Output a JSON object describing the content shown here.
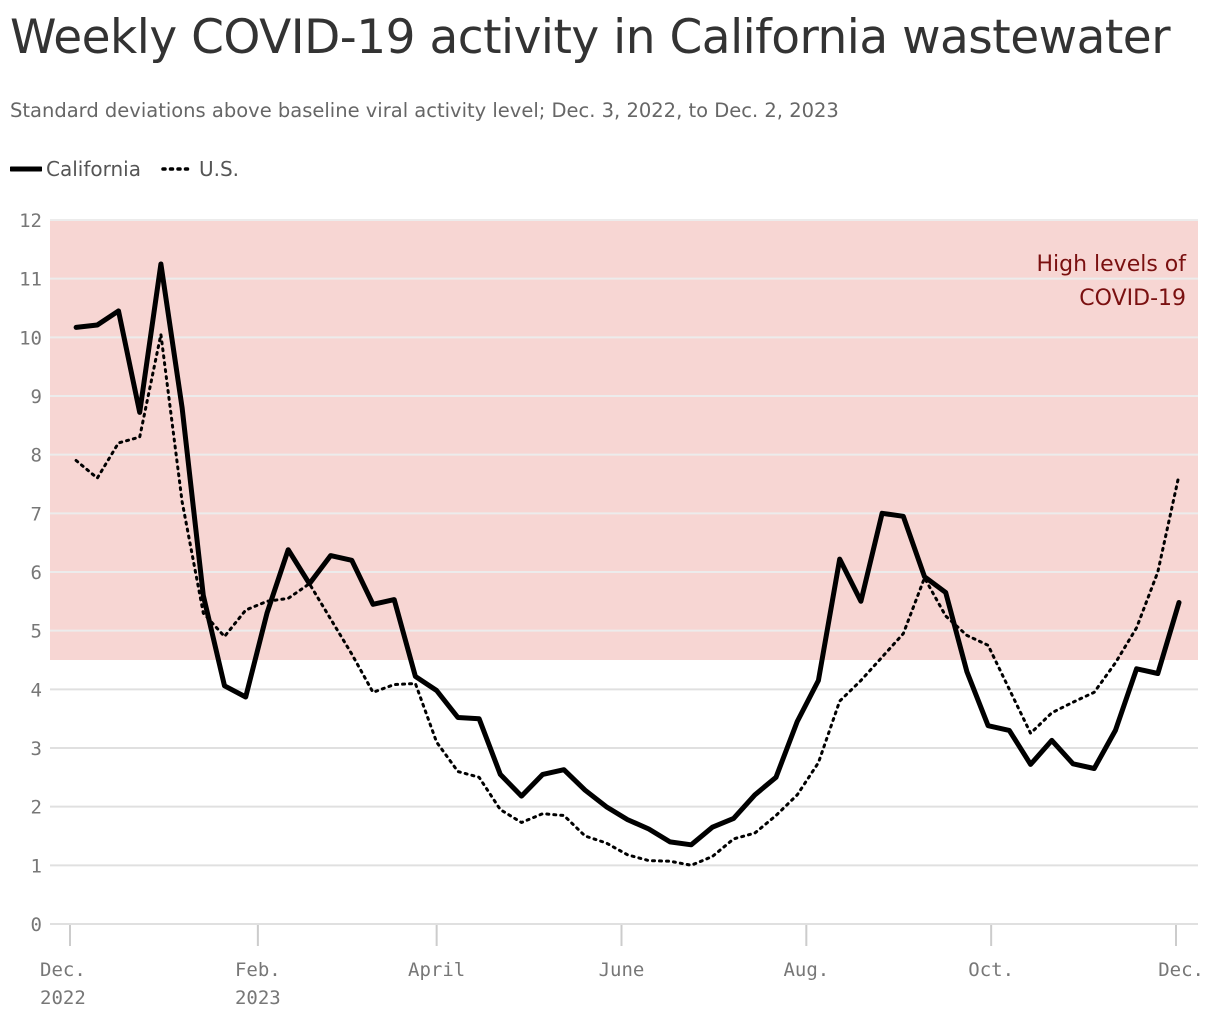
{
  "title": "Weekly COVID-19 activity in California wastewater",
  "subtitle": "Standard deviations above baseline viral activity level; Dec. 3, 2022, to Dec. 2, 2023",
  "legend": [
    {
      "name": "California",
      "style": "solid"
    },
    {
      "name": "U.S.",
      "style": "dotted"
    }
  ],
  "chart_data": {
    "type": "line",
    "title": "Weekly COVID-19 activity in California wastewater",
    "subtitle": "Standard deviations above baseline viral activity level; Dec. 3, 2022, to Dec. 2, 2023",
    "xlabel": "",
    "ylabel": "",
    "ylim": [
      0,
      12
    ],
    "yticks": [
      "0",
      "1",
      "2",
      "3",
      "4",
      "5",
      "6",
      "7",
      "8",
      "9",
      "10",
      "11",
      "12"
    ],
    "xticks": [
      {
        "line1": "Dec.",
        "line2": "2022",
        "date": "2022-12-01"
      },
      {
        "line1": "Feb.",
        "line2": "2023",
        "date": "2023-02-01"
      },
      {
        "line1": "April",
        "line2": "",
        "date": "2023-04-01"
      },
      {
        "line1": "June",
        "line2": "",
        "date": "2023-06-01"
      },
      {
        "line1": "Aug.",
        "line2": "",
        "date": "2023-08-01"
      },
      {
        "line1": "Oct.",
        "line2": "",
        "date": "2023-10-01"
      },
      {
        "line1": "Dec.",
        "line2": "",
        "date": "2023-12-01"
      }
    ],
    "x_start": "2022-12-03",
    "x_interval": "weekly",
    "band": {
      "from": 4.5,
      "to": 12,
      "label_lines": [
        "High levels of",
        "COVID-19"
      ],
      "color": "#f7d6d3"
    },
    "grid": true,
    "legend_position": "top-left",
    "series": [
      {
        "name": "California",
        "style": "solid",
        "color": "#000000",
        "values": [
          10.17,
          10.21,
          10.45,
          8.72,
          11.25,
          8.8,
          5.6,
          4.06,
          3.87,
          5.3,
          6.38,
          5.8,
          6.28,
          6.2,
          5.45,
          5.53,
          4.22,
          3.98,
          3.52,
          3.5,
          2.55,
          2.18,
          2.55,
          2.63,
          2.28,
          2.0,
          1.78,
          1.62,
          1.4,
          1.35,
          1.65,
          1.8,
          2.2,
          2.5,
          3.45,
          4.15,
          6.22,
          5.5,
          7.0,
          6.95,
          5.92,
          5.65,
          4.3,
          3.38,
          3.3,
          2.72,
          3.13,
          2.73,
          2.65,
          3.3,
          4.35,
          4.27,
          5.48
        ]
      },
      {
        "name": "U.S.",
        "style": "dotted",
        "color": "#000000",
        "values": [
          7.9,
          7.6,
          8.2,
          8.3,
          10.05,
          7.2,
          5.3,
          4.9,
          5.35,
          5.5,
          5.55,
          5.8,
          5.2,
          4.6,
          3.95,
          4.08,
          4.1,
          3.1,
          2.6,
          2.5,
          1.95,
          1.73,
          1.88,
          1.85,
          1.5,
          1.38,
          1.18,
          1.08,
          1.07,
          1.0,
          1.15,
          1.45,
          1.55,
          1.85,
          2.2,
          2.75,
          3.8,
          4.15,
          4.55,
          4.95,
          5.9,
          5.25,
          4.92,
          4.75,
          4.0,
          3.25,
          3.6,
          3.78,
          3.95,
          4.45,
          5.05,
          6.0,
          7.65
        ]
      }
    ]
  }
}
